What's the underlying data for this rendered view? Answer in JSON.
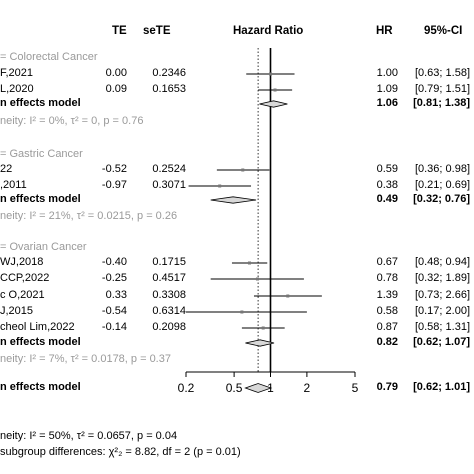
{
  "headers": {
    "te": "TE",
    "sete": "seTE",
    "plot": "Hazard Ratio",
    "hr": "HR",
    "ci": "95%-CI"
  },
  "chart_data": {
    "type": "forest",
    "x_scale": "log",
    "xlim": [
      0.2,
      5
    ],
    "x_ticks": [
      {
        "value": 0.2,
        "label": "0.2"
      },
      {
        "value": 0.5,
        "label": "0.5"
      },
      {
        "value": 1,
        "label": "1"
      },
      {
        "value": 2,
        "label": "2"
      },
      {
        "value": 5,
        "label": "5"
      }
    ],
    "overall_hr": 0.79,
    "rows": [
      {
        "kind": "group",
        "label": "= Colorectal Cancer"
      },
      {
        "kind": "study",
        "label": "F,2021",
        "te": "0.00",
        "sete": "0.2346",
        "hr": 1.0,
        "lower": 0.63,
        "upper": 1.58,
        "hr_text": "1.00",
        "ci_text": "[0.63; 1.58]"
      },
      {
        "kind": "study",
        "label": "L,2020",
        "te": "0.09",
        "sete": "0.1653",
        "hr": 1.09,
        "lower": 0.79,
        "upper": 1.51,
        "hr_text": "1.09",
        "ci_text": "[0.79; 1.51]"
      },
      {
        "kind": "pooled",
        "label": "n effects model",
        "hr": 1.06,
        "lower": 0.81,
        "upper": 1.38,
        "hr_text": "1.06",
        "ci_text": "[0.81; 1.38]"
      },
      {
        "kind": "het",
        "text": "neity: I² = 0%, τ² = 0, p = 0.76"
      },
      {
        "kind": "group",
        "label": "= Gastric Cancer"
      },
      {
        "kind": "study",
        "label": "22",
        "te": "-0.52",
        "sete": "0.2524",
        "hr": 0.59,
        "lower": 0.36,
        "upper": 0.98,
        "hr_text": "0.59",
        "ci_text": "[0.36; 0.98]"
      },
      {
        "kind": "study",
        "label": ",2011",
        "te": "-0.97",
        "sete": "0.3071",
        "hr": 0.38,
        "lower": 0.21,
        "upper": 0.69,
        "hr_text": "0.38",
        "ci_text": "[0.21; 0.69]"
      },
      {
        "kind": "pooled",
        "label": "n effects model",
        "hr": 0.49,
        "lower": 0.32,
        "upper": 0.76,
        "hr_text": "0.49",
        "ci_text": "[0.32; 0.76]"
      },
      {
        "kind": "het",
        "text": "neity: I² = 21%, τ² = 0.0215, p = 0.26"
      },
      {
        "kind": "group",
        "label": "= Ovarian Cancer"
      },
      {
        "kind": "study",
        "label": "WJ,2018",
        "te": "-0.40",
        "sete": "0.1715",
        "hr": 0.67,
        "lower": 0.48,
        "upper": 0.94,
        "hr_text": "0.67",
        "ci_text": "[0.48; 0.94]"
      },
      {
        "kind": "study",
        "label": "CCP,2022",
        "te": "-0.25",
        "sete": "0.4517",
        "hr": 0.78,
        "lower": 0.32,
        "upper": 1.89,
        "hr_text": "0.78",
        "ci_text": "[0.32; 1.89]"
      },
      {
        "kind": "study",
        "label": "c O,2021",
        "te": "0.33",
        "sete": "0.3308",
        "hr": 1.39,
        "lower": 0.73,
        "upper": 2.66,
        "hr_text": "1.39",
        "ci_text": "[0.73; 2.66]"
      },
      {
        "kind": "study",
        "label": "J,2015",
        "te": "-0.54",
        "sete": "0.6314",
        "hr": 0.58,
        "lower": 0.17,
        "upper": 2.0,
        "hr_text": "0.58",
        "ci_text": "[0.17; 2.00]"
      },
      {
        "kind": "study",
        "label": "cheol Lim,2022",
        "te": "-0.14",
        "sete": "0.2098",
        "hr": 0.87,
        "lower": 0.58,
        "upper": 1.31,
        "hr_text": "0.87",
        "ci_text": "[0.58; 1.31]"
      },
      {
        "kind": "pooled",
        "label": "n effects model",
        "hr": 0.82,
        "lower": 0.62,
        "upper": 1.07,
        "hr_text": "0.82",
        "ci_text": "[0.62; 1.07]"
      },
      {
        "kind": "het",
        "text": "neity: I² = 7%, τ² = 0.0178, p = 0.37"
      },
      {
        "kind": "overall",
        "label": "n effects model",
        "hr": 0.79,
        "lower": 0.62,
        "upper": 1.01,
        "hr_text": "0.79",
        "ci_text": "[0.62; 1.01]"
      }
    ],
    "footer": {
      "overall_het": "neity: I² = 50%, τ² = 0.0657, p = 0.04",
      "subgroup_test": "subgroup differences: χ²₂ = 8.82, df = 2 (p = 0.01)"
    }
  }
}
